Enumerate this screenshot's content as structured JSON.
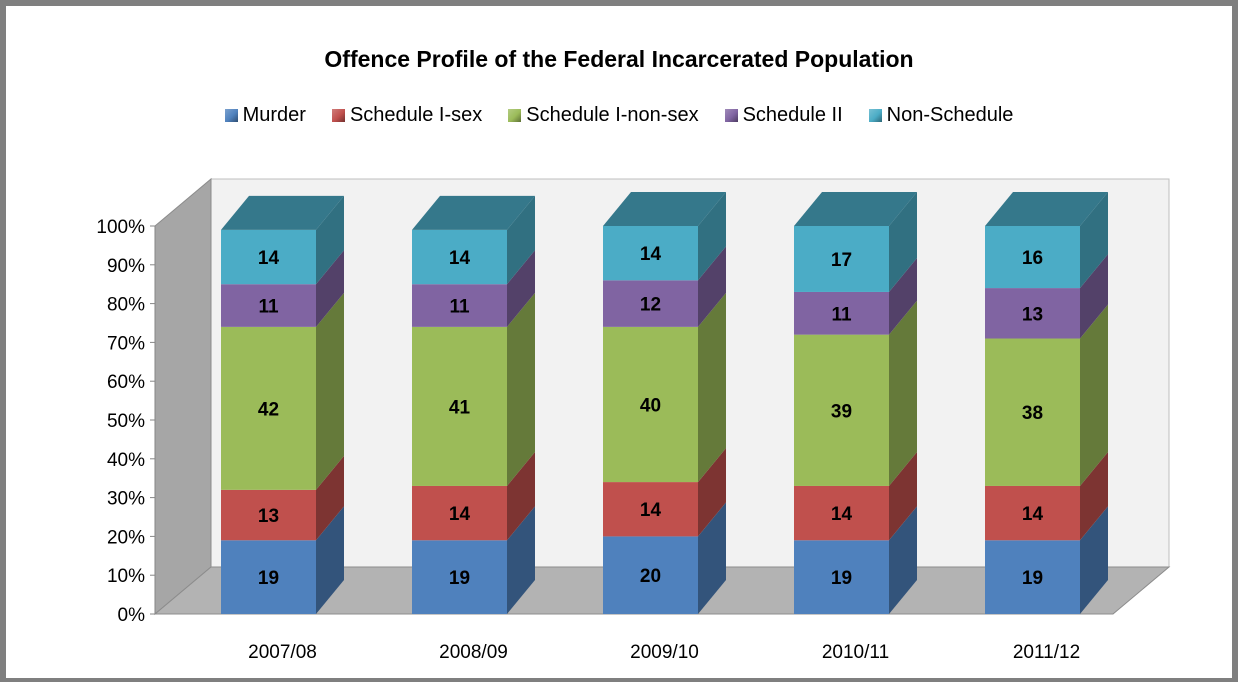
{
  "chart_data": {
    "type": "bar",
    "stacked": true,
    "title": "Offence Profile of the Federal Incarcerated Population",
    "categories": [
      "2007/08",
      "2008/09",
      "2009/10",
      "2010/11",
      "2011/12"
    ],
    "series": [
      {
        "name": "Murder",
        "color": "#4f81bd",
        "values": [
          19,
          19,
          20,
          19,
          19
        ]
      },
      {
        "name": "Schedule I-sex",
        "color": "#c0504d",
        "values": [
          13,
          14,
          14,
          14,
          14
        ]
      },
      {
        "name": "Schedule I-non-sex",
        "color": "#9bbb59",
        "values": [
          42,
          41,
          40,
          39,
          38
        ]
      },
      {
        "name": "Schedule II",
        "color": "#8064a2",
        "values": [
          11,
          11,
          12,
          11,
          13
        ]
      },
      {
        "name": "Non-Schedule",
        "color": "#4bacc6",
        "values": [
          14,
          14,
          14,
          17,
          16
        ]
      }
    ],
    "y_ticks": [
      "0%",
      "10%",
      "20%",
      "30%",
      "40%",
      "50%",
      "60%",
      "70%",
      "80%",
      "90%",
      "100%"
    ],
    "ylim": [
      0,
      100
    ],
    "legend_position": "top",
    "grid": false
  }
}
